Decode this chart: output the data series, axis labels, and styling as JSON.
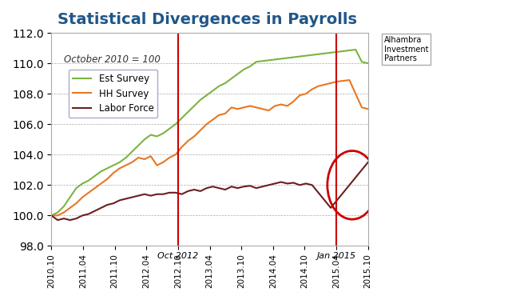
{
  "title": "Statistical Divergences in Payrolls",
  "subtitle": "October 2010 = 100",
  "ylim": [
    98.0,
    112.0
  ],
  "yticks": [
    98.0,
    100.0,
    102.0,
    104.0,
    106.0,
    108.0,
    110.0,
    112.0
  ],
  "xtick_labels": [
    "2010.10",
    "2011.04",
    "2011.10",
    "2012.04",
    "2012.10",
    "2013.04",
    "2013.10",
    "2014.04",
    "2014.10",
    "2015.04",
    "2015.10"
  ],
  "vlines": [
    4,
    9
  ],
  "vline_labels": [
    "Oct 2012",
    "Jan 2015"
  ],
  "background_color": "#FFFFFF",
  "plot_bg_color": "#FFFFFF",
  "grid_color": "#AAAAAA",
  "title_color": "#215788",
  "est_color": "#7CB342",
  "hh_color": "#E87722",
  "lf_color": "#6B1F1F",
  "circle_color": "#CC0000",
  "vline_color": "#CC0000",
  "legend_labels": [
    "Est Survey",
    "HH Survey",
    "Labor Force"
  ],
  "est_survey": [
    100.0,
    100.2,
    100.6,
    101.2,
    101.8,
    102.1,
    102.3,
    102.6,
    102.9,
    103.1,
    103.3,
    103.5,
    103.8,
    104.2,
    104.6,
    105.0,
    105.3,
    105.2,
    105.4,
    105.7,
    106.0,
    106.4,
    106.8,
    107.2,
    107.6,
    107.9,
    108.2,
    108.5,
    108.7,
    109.0,
    109.3,
    109.6,
    109.8,
    110.1,
    110.15,
    110.2,
    110.25,
    110.3,
    110.35,
    110.4,
    110.45,
    110.5,
    110.55,
    110.6,
    110.65,
    110.7,
    110.75,
    110.8,
    110.85,
    110.9,
    110.1,
    110.0
  ],
  "hh_survey": [
    100.0,
    100.0,
    100.2,
    100.5,
    100.8,
    101.2,
    101.5,
    101.8,
    102.1,
    102.4,
    102.8,
    103.1,
    103.3,
    103.5,
    103.8,
    103.7,
    103.9,
    103.3,
    103.5,
    103.8,
    104.0,
    104.5,
    104.9,
    105.2,
    105.6,
    106.0,
    106.3,
    106.6,
    106.7,
    107.1,
    107.0,
    107.1,
    107.2,
    107.1,
    107.0,
    106.9,
    107.2,
    107.3,
    107.2,
    107.5,
    107.9,
    108.0,
    108.3,
    108.5,
    108.6,
    108.7,
    108.8,
    108.85,
    108.9,
    108.0,
    107.1,
    107.0
  ],
  "labor_force": [
    100.0,
    99.7,
    99.8,
    99.7,
    99.8,
    100.0,
    100.1,
    100.3,
    100.5,
    100.7,
    100.8,
    101.0,
    101.1,
    101.2,
    101.3,
    101.4,
    101.3,
    101.4,
    101.4,
    101.5,
    101.5,
    101.4,
    101.6,
    101.7,
    101.6,
    101.8,
    101.9,
    101.8,
    101.7,
    101.9,
    101.8,
    101.9,
    101.95,
    101.8,
    101.9,
    102.0,
    102.1,
    102.2,
    102.1,
    102.15,
    102.0,
    102.1,
    102.0,
    101.5,
    101.0,
    100.5,
    101.0,
    101.5,
    102.0,
    102.5,
    103.0,
    103.5
  ]
}
